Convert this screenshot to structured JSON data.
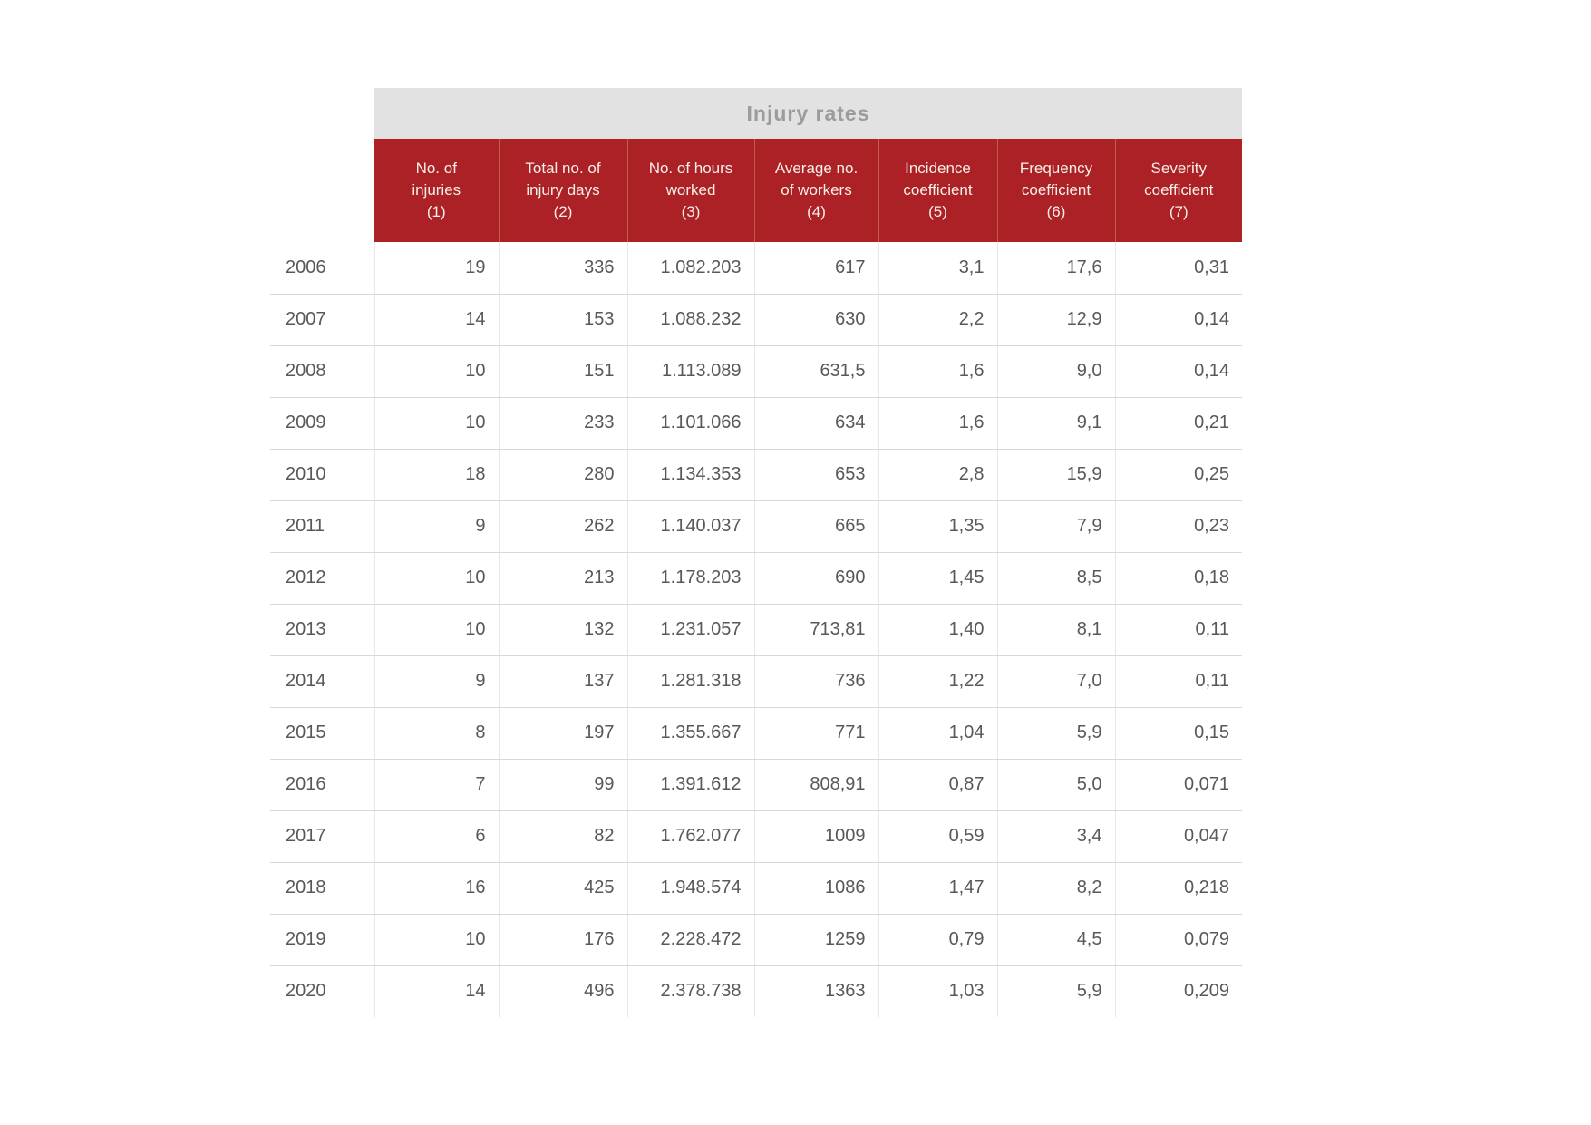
{
  "chart_data": {
    "type": "table",
    "title": "Injury rates",
    "columns": [
      {
        "lines": [
          "No. of",
          "injuries",
          "(1)"
        ]
      },
      {
        "lines": [
          "Total no. of",
          "injury days",
          "(2)"
        ]
      },
      {
        "lines": [
          "No. of hours",
          "worked",
          "(3)"
        ]
      },
      {
        "lines": [
          "Average no.",
          "of workers",
          "(4)"
        ]
      },
      {
        "lines": [
          "Incidence",
          "coefficient",
          "(5)"
        ]
      },
      {
        "lines": [
          "Frequency",
          "coefficient",
          "(6)"
        ]
      },
      {
        "lines": [
          "Severity",
          "coefficient",
          "(7)"
        ]
      }
    ],
    "rows": [
      {
        "year": "2006",
        "values": [
          "19",
          "336",
          "1.082.203",
          "617",
          "3,1",
          "17,6",
          "0,31"
        ]
      },
      {
        "year": "2007",
        "values": [
          "14",
          "153",
          "1.088.232",
          "630",
          "2,2",
          "12,9",
          "0,14"
        ]
      },
      {
        "year": "2008",
        "values": [
          "10",
          "151",
          "1.113.089",
          "631,5",
          "1,6",
          "9,0",
          "0,14"
        ]
      },
      {
        "year": "2009",
        "values": [
          "10",
          "233",
          "1.101.066",
          "634",
          "1,6",
          "9,1",
          "0,21"
        ]
      },
      {
        "year": "2010",
        "values": [
          "18",
          "280",
          "1.134.353",
          "653",
          "2,8",
          "15,9",
          "0,25"
        ]
      },
      {
        "year": "2011",
        "values": [
          "9",
          "262",
          "1.140.037",
          "665",
          "1,35",
          "7,9",
          "0,23"
        ]
      },
      {
        "year": "2012",
        "values": [
          "10",
          "213",
          "1.178.203",
          "690",
          "1,45",
          "8,5",
          "0,18"
        ]
      },
      {
        "year": "2013",
        "values": [
          "10",
          "132",
          "1.231.057",
          "713,81",
          "1,40",
          "8,1",
          "0,11"
        ]
      },
      {
        "year": "2014",
        "values": [
          "9",
          "137",
          "1.281.318",
          "736",
          "1,22",
          "7,0",
          "0,11"
        ]
      },
      {
        "year": "2015",
        "values": [
          "8",
          "197",
          "1.355.667",
          "771",
          "1,04",
          "5,9",
          "0,15"
        ]
      },
      {
        "year": "2016",
        "values": [
          "7",
          "99",
          "1.391.612",
          "808,91",
          "0,87",
          "5,0",
          "0,071"
        ]
      },
      {
        "year": "2017",
        "values": [
          "6",
          "82",
          "1.762.077",
          "1009",
          "0,59",
          "3,4",
          "0,047"
        ]
      },
      {
        "year": "2018",
        "values": [
          "16",
          "425",
          "1.948.574",
          "1086",
          "1,47",
          "8,2",
          "0,218"
        ]
      },
      {
        "year": "2019",
        "values": [
          "10",
          "176",
          "2.228.472",
          "1259",
          "0,79",
          "4,5",
          "0,079"
        ]
      },
      {
        "year": "2020",
        "values": [
          "14",
          "496",
          "2.378.738",
          "1363",
          "1,03",
          "5,9",
          "0,209"
        ]
      }
    ]
  },
  "colors": {
    "header-red": "#ab2125",
    "header-divider": "#c25d48",
    "band-bg": "#e2e2e2",
    "band-text": "#9c9c9c",
    "header-text": "#f7efe9",
    "body-text": "#58585a",
    "row-line": "#d8d8d8",
    "col-line": "#e7e7e7"
  }
}
